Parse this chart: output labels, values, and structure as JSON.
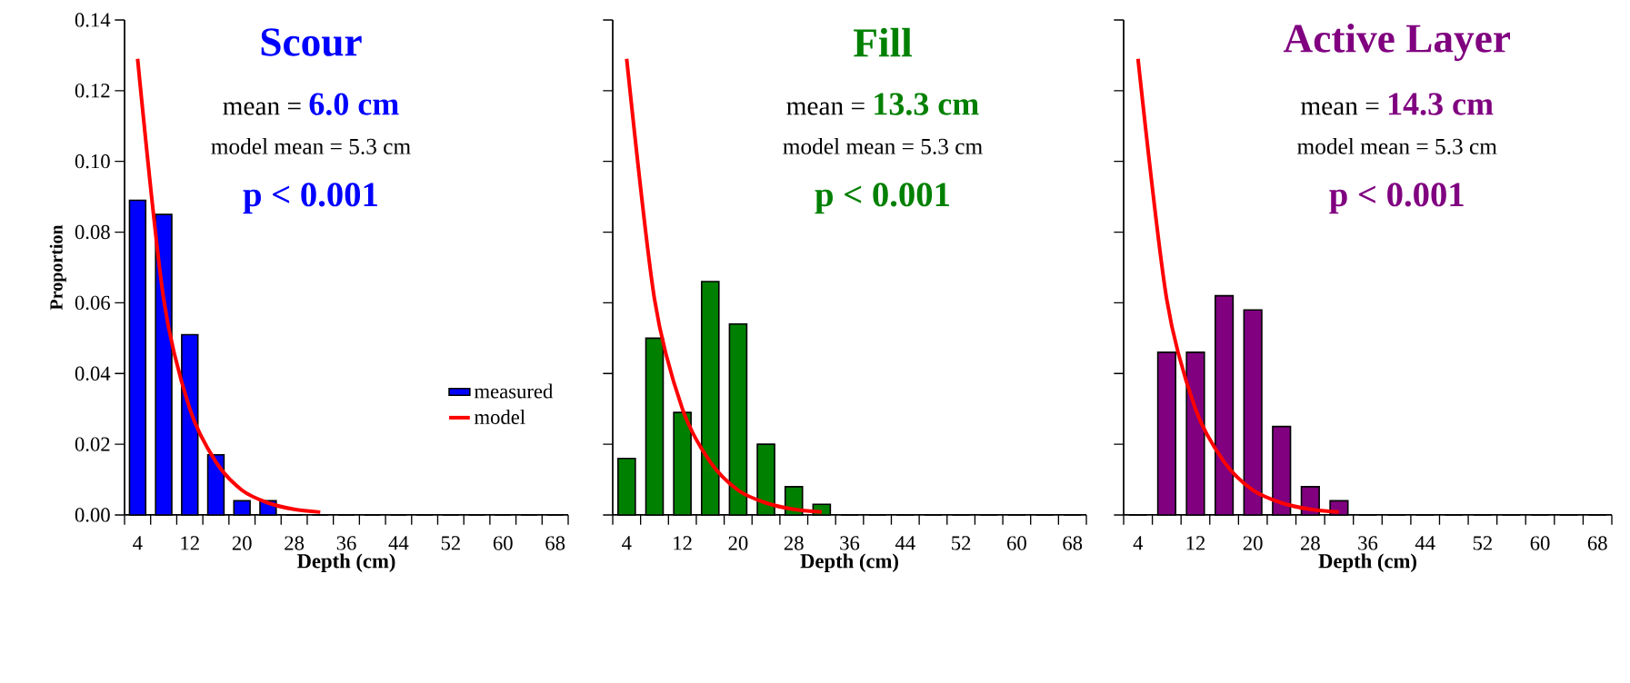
{
  "chart_data": [
    {
      "type": "bar",
      "title": "Scour",
      "annotations": [
        "mean =",
        "6.0 cm",
        "model mean = 5.3 cm",
        "p < 0.001"
      ],
      "xlabel": "Depth (cm)",
      "ylabel": "Proportion",
      "categories": [
        "4",
        null,
        "12",
        null,
        "20",
        null,
        "28",
        null,
        "36",
        null,
        "44",
        null,
        "52",
        null,
        "60",
        null,
        "68"
      ],
      "series": [
        {
          "name": "measured",
          "color": "#0000ff",
          "values": [
            0.089,
            0.085,
            0.051,
            0.017,
            0.004,
            0.004,
            0,
            0,
            0,
            0,
            0,
            0,
            0,
            0,
            0,
            0,
            0
          ]
        },
        {
          "name": "model",
          "type": "line",
          "color": "#ff0000",
          "values": [
            0.129,
            0.061,
            0.03,
            0.015,
            0.007,
            0.0034,
            0.0016,
            0.0008,
            null,
            null,
            null,
            null,
            null,
            null,
            null,
            null,
            null
          ]
        }
      ],
      "ylim": [
        0,
        0.14
      ],
      "yticks": [
        {
          "value": 0,
          "label": "0.00"
        },
        {
          "value": 0.02,
          "label": "0.02"
        },
        {
          "value": 0.04,
          "label": "0.04"
        },
        {
          "value": 0.06,
          "label": "0.06"
        },
        {
          "value": 0.08,
          "label": "0.08"
        },
        {
          "value": 0.1,
          "label": "0.10"
        },
        {
          "value": 0.12,
          "label": "0.12"
        },
        {
          "value": 0.14,
          "label": "0.14"
        }
      ],
      "legend": "bottom right"
    },
    {
      "type": "bar",
      "title": "Fill",
      "annotations": [
        "mean =",
        "13.3 cm",
        "model mean = 5.3 cm",
        "p < 0.001"
      ],
      "xlabel": "Depth (cm)",
      "categories": [
        "4",
        null,
        "12",
        null,
        "20",
        null,
        "28",
        null,
        "36",
        null,
        "44",
        null,
        "52",
        null,
        "60",
        null,
        "68"
      ],
      "series": [
        {
          "color": "#008000",
          "values": [
            0.016,
            0.05,
            0.029,
            0.066,
            0.054,
            0.02,
            0.008,
            0.003,
            0,
            0,
            0,
            0,
            0,
            0,
            0,
            0,
            0
          ]
        },
        {
          "type": "line",
          "color": "#ff0000",
          "values": [
            0.129,
            0.061,
            0.03,
            0.015,
            0.007,
            0.0034,
            0.0016,
            0.0008,
            null,
            null,
            null,
            null,
            null,
            null,
            null,
            null,
            null
          ]
        }
      ],
      "ylim": [
        0,
        0.14
      ],
      "yticks": [
        0,
        0.02,
        0.04,
        0.06,
        0.08,
        0.1,
        0.12,
        0.14
      ],
      "tick_labels": "x"
    },
    {
      "type": "bar",
      "title": "Active Layer",
      "annotations": [
        "mean =",
        "14.3 cm",
        "model mean = 5.3 cm",
        "p < 0.001"
      ],
      "xlabel": "Depth (cm)",
      "categories": [
        "4",
        null,
        "12",
        null,
        "20",
        null,
        "28",
        null,
        "36",
        null,
        "44",
        null,
        "52",
        null,
        "60",
        null,
        "68"
      ],
      "series": [
        {
          "color": "#800080",
          "values": [
            0,
            0.046,
            0.046,
            0.062,
            0.058,
            0.025,
            0.008,
            0.004,
            0,
            0,
            0,
            0,
            0,
            0,
            0,
            0,
            0
          ]
        },
        {
          "type": "line",
          "color": "#ff0000",
          "values": [
            0.129,
            0.061,
            0.03,
            0.015,
            0.007,
            0.0034,
            0.0016,
            0.0008,
            null,
            null,
            null,
            null,
            null,
            null,
            null,
            null,
            null
          ]
        }
      ],
      "ylim": [
        0,
        0.14
      ],
      "yticks": [
        0,
        0.02,
        0.04,
        0.06,
        0.08,
        0.1,
        0.12,
        0.14
      ],
      "tick_labels": "x"
    }
  ]
}
